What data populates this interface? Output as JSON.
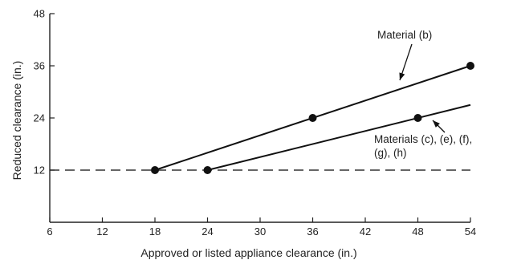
{
  "chart_data": {
    "type": "line",
    "title": "",
    "xlabel": "Approved or listed appliance clearance (in.)",
    "ylabel": "Reduced clearance (in.)",
    "xlim": [
      6,
      54
    ],
    "ylim": [
      0,
      48
    ],
    "x_ticks": [
      "6",
      "12",
      "18",
      "24",
      "30",
      "36",
      "42",
      "48",
      "54"
    ],
    "y_ticks": [
      "12",
      "24",
      "36",
      "48"
    ],
    "grid": false,
    "reference_line": {
      "y": 12,
      "style": "dashed"
    },
    "series": [
      {
        "name": "Material (b)",
        "line": [
          [
            18,
            12
          ],
          [
            54,
            36
          ]
        ],
        "points": [
          [
            18,
            12
          ],
          [
            36,
            24
          ],
          [
            54,
            36
          ]
        ]
      },
      {
        "name": "Materials (c), (e), (f), (g), (h)",
        "line": [
          [
            24,
            12
          ],
          [
            54,
            27
          ]
        ],
        "points": [
          [
            24,
            12
          ],
          [
            48,
            24
          ]
        ]
      }
    ],
    "annotations": [
      {
        "series": 0,
        "lines": [
          "Material (b)"
        ]
      },
      {
        "series": 1,
        "lines": [
          "Materials (c), (e), (f),",
          "(g), (h)"
        ]
      }
    ]
  }
}
